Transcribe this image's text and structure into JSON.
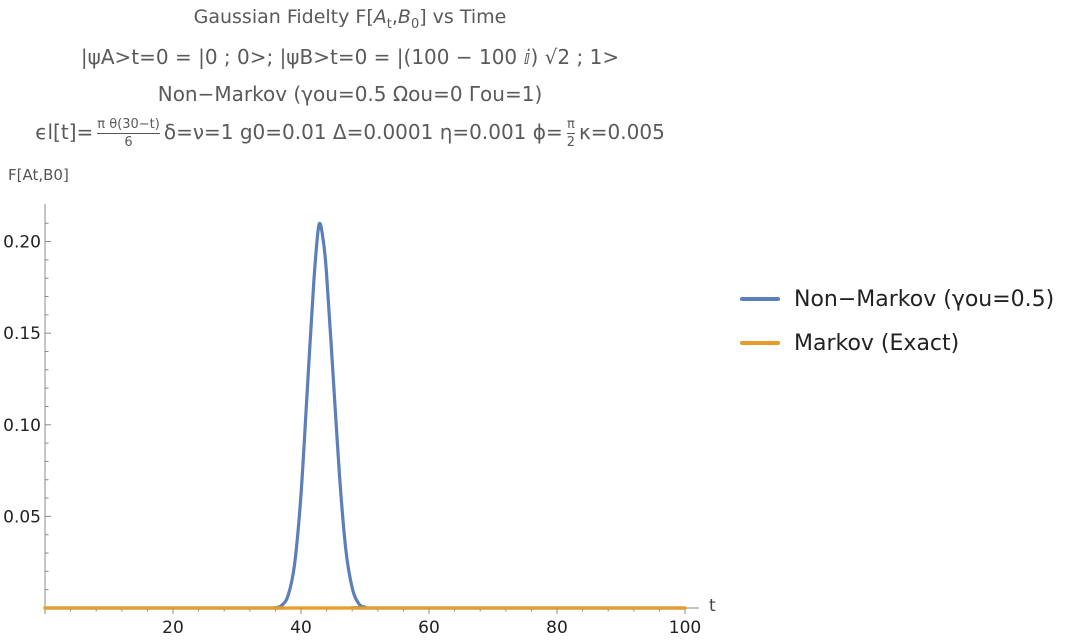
{
  "title": {
    "line1_prefix": "Gaussian Fidelty F[",
    "line1_A": "A",
    "line1_Asub": "t",
    "line1_comma": ",",
    "line1_B": "B",
    "line1_Bsub": "0",
    "line1_suffix": "] vs Time",
    "line2": "|ψA>t=0 = |0 ; 0>; |ψB>t=0 = |(100 − 100 ⅈ) √2 ; 1>",
    "line3": "Non−Markov (γou=0.5  Ωou=0 Γou=1)",
    "line4_prefix": "ϵl[t]=",
    "line4_frac_num": "π θ(30−t)",
    "line4_frac_den": "6",
    "line4_mid": "δ=ν=1 g0=0.01 Δ=0.0001 η=0.001 ϕ=",
    "line4_frac2_num": "π",
    "line4_frac2_den": "2",
    "line4_suffix": "κ=0.005"
  },
  "ylabel": "F[At,B0]",
  "xlabel": "t",
  "legend": [
    {
      "label": "Non−Markov (γou=0.5)",
      "color": "#5b7fb8"
    },
    {
      "label": "Markov (Exact)",
      "color": "#e69c26"
    }
  ],
  "chart_data": {
    "type": "line",
    "title": "Gaussian Fidelty F[At,B0] vs Time",
    "xlabel": "t",
    "ylabel": "F[At,B0]",
    "xlim": [
      0,
      100
    ],
    "ylim": [
      0,
      0.22
    ],
    "xticks": [
      20,
      40,
      60,
      80,
      100
    ],
    "yticks": [
      0.05,
      0.1,
      0.15,
      0.2
    ],
    "ytick_labels": [
      "0.05",
      "0.10",
      "0.15",
      "0.20"
    ],
    "xtick_labels": [
      "20",
      "40",
      "60",
      "80",
      "100"
    ],
    "series": [
      {
        "name": "Non−Markov (γou=0.5)",
        "color": "#5b7fb8",
        "x": [
          0,
          34,
          36,
          37,
          38,
          39,
          40,
          41,
          42,
          42.8,
          43.5,
          44,
          45,
          46,
          47,
          48,
          49,
          50,
          52,
          100
        ],
        "y": [
          0,
          0,
          0.0002,
          0.0015,
          0.007,
          0.024,
          0.062,
          0.12,
          0.178,
          0.209,
          0.2,
          0.182,
          0.128,
          0.073,
          0.032,
          0.011,
          0.0025,
          0.0005,
          0,
          0
        ]
      },
      {
        "name": "Markov (Exact)",
        "color": "#e69c26",
        "x": [
          0,
          100
        ],
        "y": [
          0,
          0
        ]
      }
    ]
  }
}
